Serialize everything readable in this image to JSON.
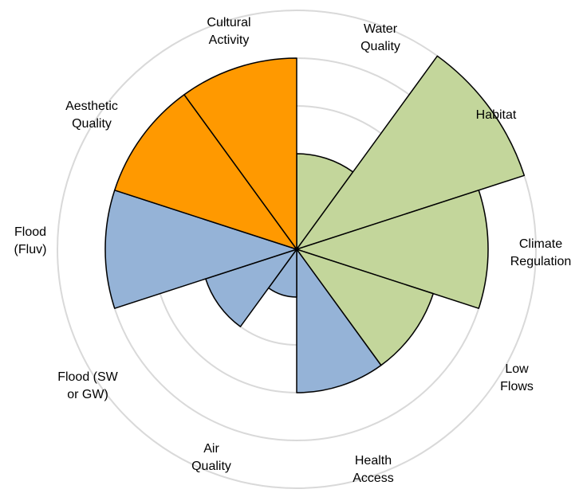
{
  "chart_data": {
    "type": "polar-area",
    "categories": [
      [
        "Water",
        "Quality"
      ],
      [
        "Habitat"
      ],
      [
        "Climate",
        "Regulation"
      ],
      [
        "Low",
        "Flows"
      ],
      [
        "Health",
        "Access"
      ],
      [
        "Air",
        "Quality"
      ],
      [
        "Flood (SW",
        "or GW)"
      ],
      [
        "Flood",
        "(Fluv)"
      ],
      [
        "Aesthetic",
        "Quality"
      ],
      [
        "Cultural",
        "Activity"
      ]
    ],
    "values": [
      2,
      5,
      4,
      3,
      3,
      1,
      2,
      4,
      4,
      4
    ],
    "colors": [
      "#c3d69b",
      "#c3d69b",
      "#c3d69b",
      "#c3d69b",
      "#95b3d7",
      "#95b3d7",
      "#95b3d7",
      "#95b3d7",
      "#ff9900",
      "#ff9900"
    ],
    "ylim": [
      0,
      5
    ],
    "yticks": [
      1,
      2,
      3,
      4,
      5
    ],
    "grid": true
  }
}
